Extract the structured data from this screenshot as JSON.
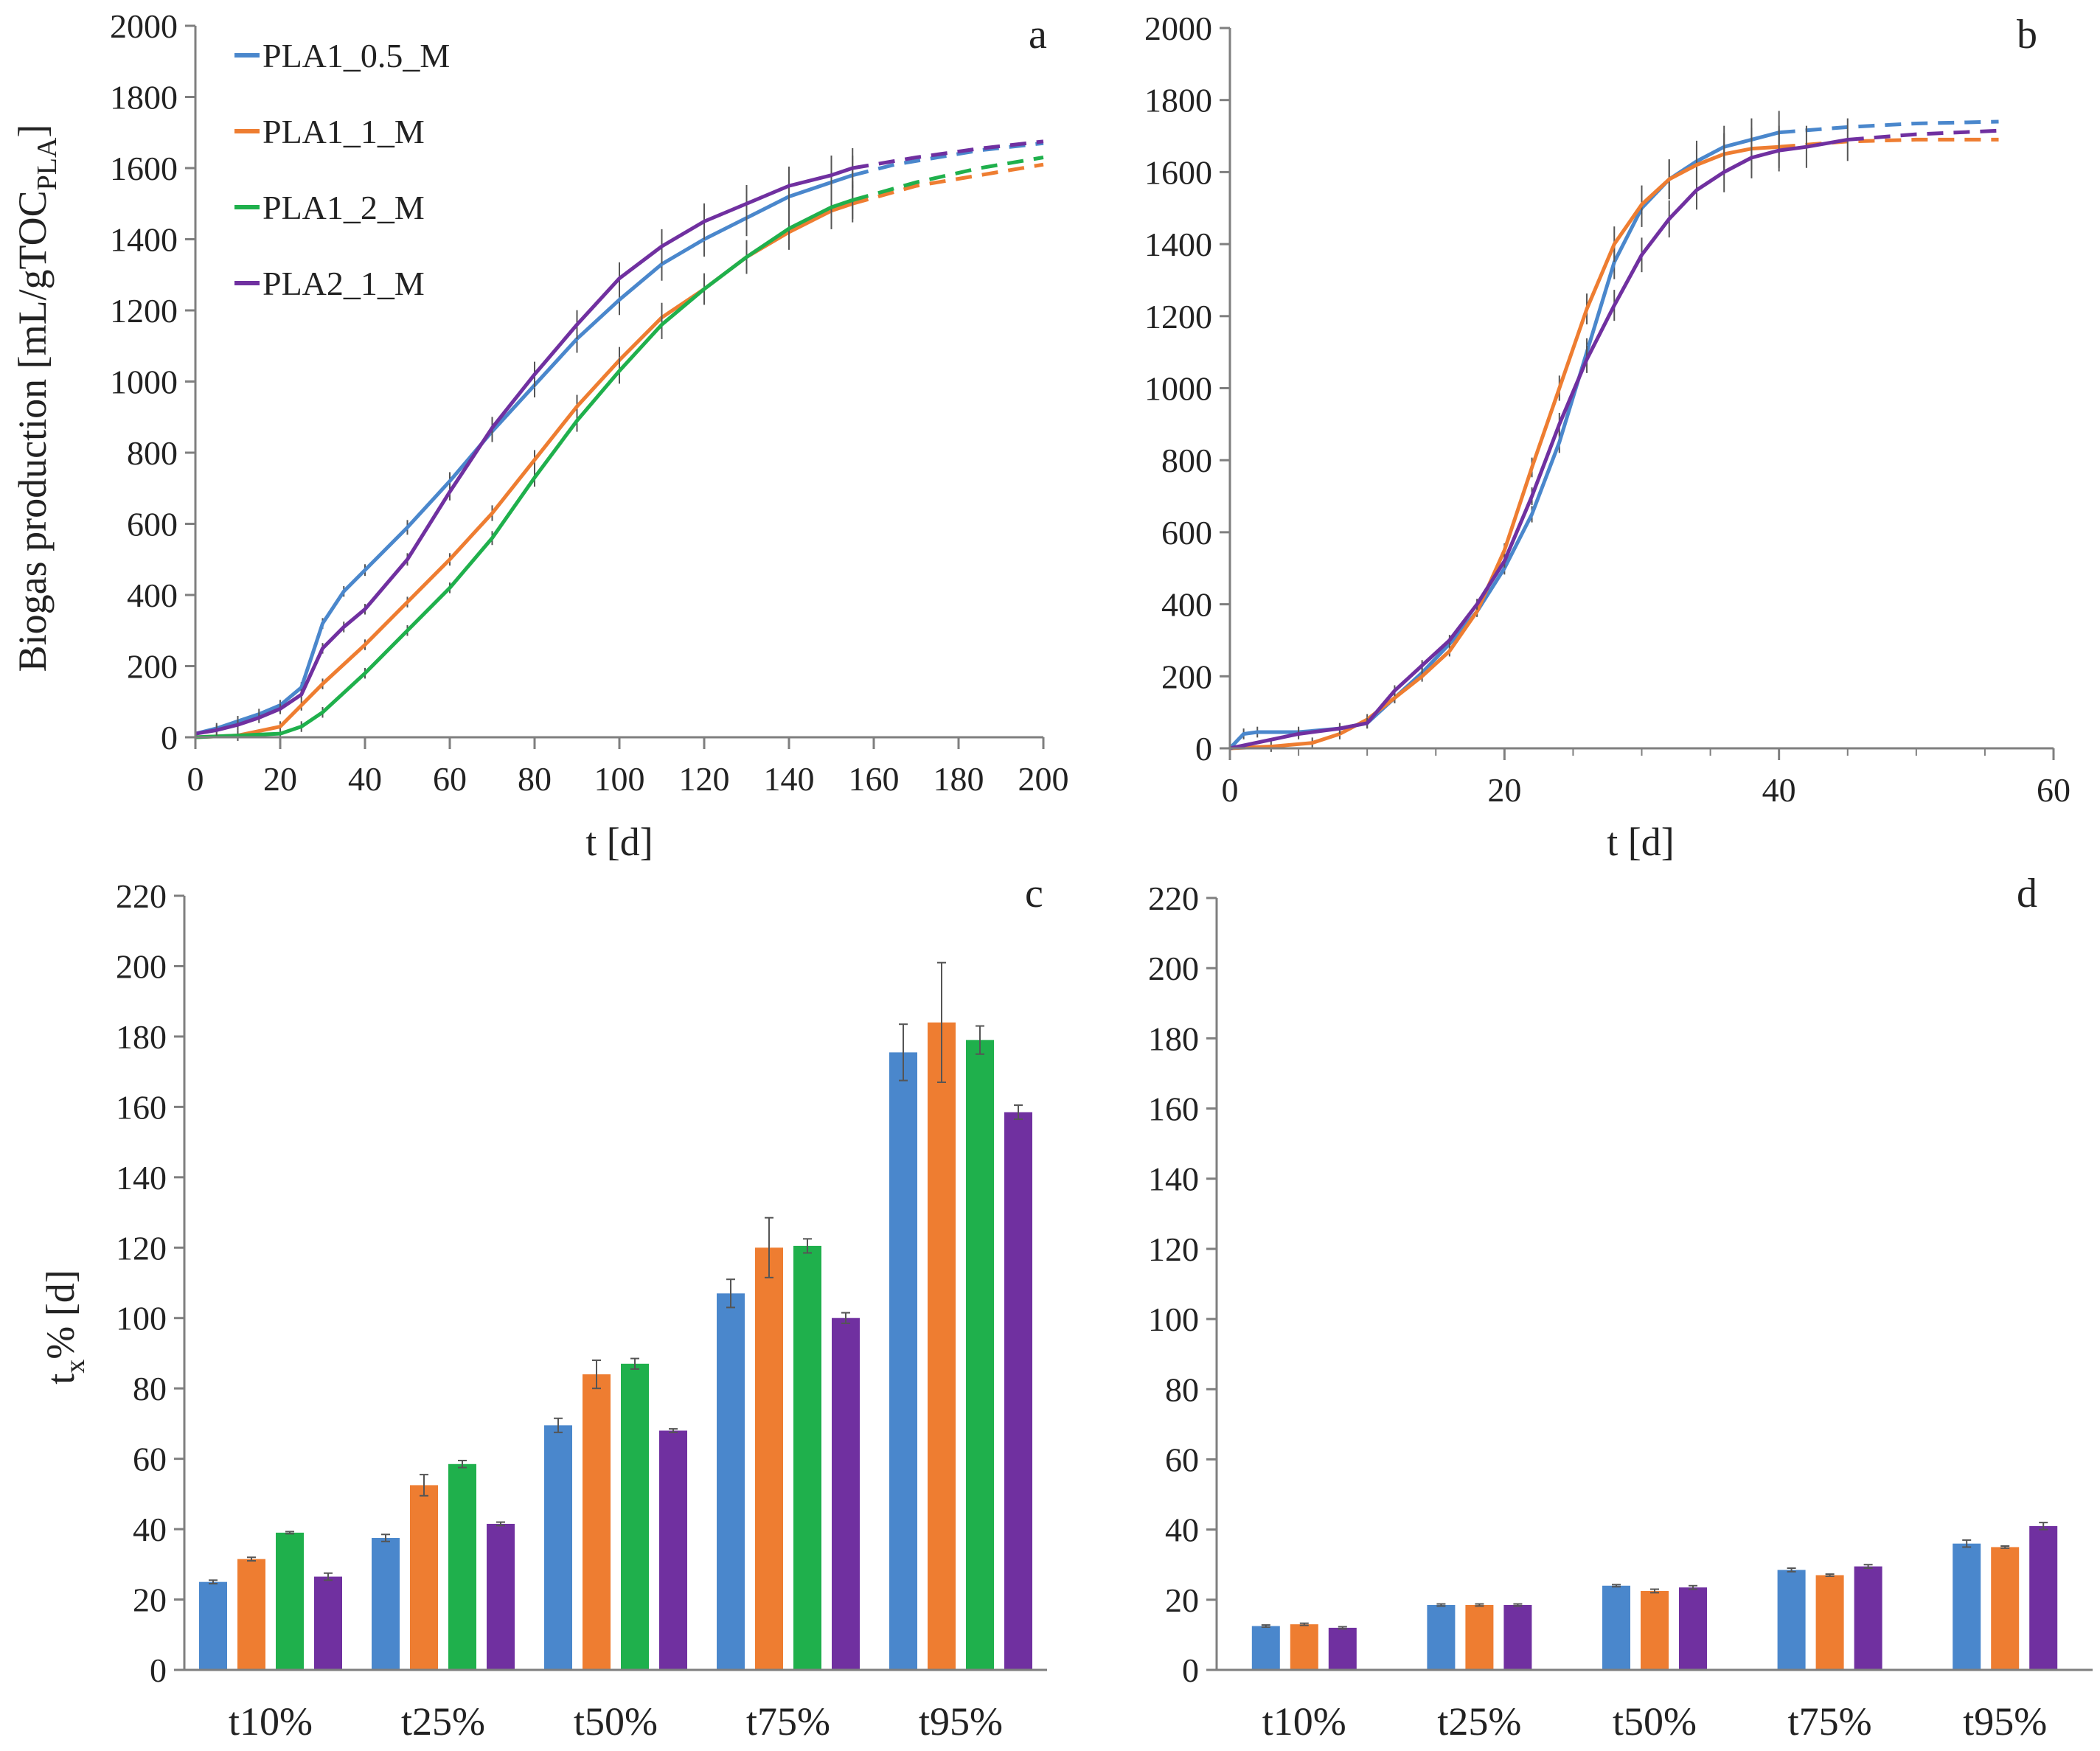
{
  "colors": {
    "PLA1_0.5_M": "#4a87cc",
    "PLA1_1_M": "#ee7d31",
    "PLA1_2_M": "#1fb04c",
    "PLA2_1_M": "#7030a0",
    "axis": "#7f7f7f",
    "error": "#555555"
  },
  "legend": [
    "PLA1_0.5_M",
    "PLA1_1_M",
    "PLA1_2_M",
    "PLA2_1_M"
  ],
  "chart_data": [
    {
      "panel": "a",
      "type": "line",
      "xlabel": "t [d]",
      "ylabel_main": "Biogas production [mL/gTOC",
      "ylabel_sub": "PLA",
      "ylabel_end": "]",
      "xlim": [
        0,
        200
      ],
      "ylim": [
        0,
        2000
      ],
      "xticks": [
        0,
        20,
        40,
        60,
        80,
        100,
        120,
        140,
        160,
        180,
        200
      ],
      "yticks": [
        0,
        200,
        400,
        600,
        800,
        1000,
        1200,
        1400,
        1600,
        1800,
        2000
      ],
      "legend_position": "top-left",
      "series": [
        {
          "name": "PLA1_0.5_M",
          "x": [
            0,
            5,
            10,
            15,
            20,
            25,
            30,
            35,
            40,
            50,
            60,
            70,
            80,
            90,
            100,
            110,
            120,
            130,
            140,
            150,
            155
          ],
          "y": [
            10,
            25,
            45,
            65,
            90,
            140,
            320,
            410,
            470,
            590,
            720,
            860,
            990,
            1120,
            1230,
            1330,
            1400,
            1460,
            1520,
            1560,
            1580
          ],
          "fit_x": [
            155,
            165,
            175,
            185,
            200
          ],
          "fit_y": [
            1580,
            1610,
            1630,
            1650,
            1670
          ]
        },
        {
          "name": "PLA1_1_M",
          "x": [
            0,
            10,
            20,
            25,
            30,
            40,
            50,
            60,
            70,
            80,
            90,
            100,
            110,
            120,
            130,
            140,
            150,
            155
          ],
          "y": [
            0,
            5,
            30,
            90,
            150,
            260,
            380,
            500,
            630,
            780,
            930,
            1060,
            1180,
            1260,
            1350,
            1420,
            1480,
            1500
          ],
          "fit_x": [
            155,
            170,
            185,
            200
          ],
          "fit_y": [
            1500,
            1550,
            1580,
            1610
          ]
        },
        {
          "name": "PLA1_2_M",
          "x": [
            0,
            10,
            20,
            25,
            30,
            40,
            50,
            60,
            70,
            80,
            90,
            100,
            110,
            120,
            130,
            140,
            150,
            155
          ],
          "y": [
            0,
            5,
            10,
            30,
            70,
            180,
            300,
            420,
            560,
            730,
            890,
            1030,
            1160,
            1260,
            1350,
            1430,
            1490,
            1510
          ],
          "fit_x": [
            155,
            170,
            185,
            200
          ],
          "fit_y": [
            1510,
            1560,
            1600,
            1630
          ]
        },
        {
          "name": "PLA2_1_M",
          "x": [
            0,
            5,
            10,
            15,
            20,
            25,
            30,
            35,
            40,
            50,
            60,
            70,
            80,
            90,
            100,
            110,
            120,
            130,
            140,
            150,
            155
          ],
          "y": [
            10,
            20,
            35,
            55,
            80,
            120,
            250,
            310,
            360,
            500,
            690,
            870,
            1020,
            1160,
            1290,
            1380,
            1450,
            1500,
            1550,
            1580,
            1600
          ],
          "fit_x": [
            155,
            170,
            185,
            200
          ],
          "fit_y": [
            1600,
            1630,
            1655,
            1675
          ]
        }
      ]
    },
    {
      "panel": "b",
      "type": "line",
      "xlabel": "t [d]",
      "xlim": [
        0,
        60
      ],
      "ylim": [
        0,
        2000
      ],
      "xticks": [
        0,
        20,
        40,
        60
      ],
      "yticks": [
        0,
        200,
        400,
        600,
        800,
        1000,
        1200,
        1400,
        1600,
        1800,
        2000
      ],
      "series": [
        {
          "name": "PLA1_0.5_M",
          "x": [
            0,
            1,
            2,
            5,
            8,
            10,
            12,
            14,
            16,
            18,
            20,
            22,
            24,
            26,
            28,
            30,
            32,
            34,
            36,
            38,
            40
          ],
          "y": [
            0,
            40,
            45,
            45,
            55,
            70,
            140,
            210,
            290,
            380,
            500,
            650,
            850,
            1100,
            1350,
            1500,
            1580,
            1630,
            1670,
            1690,
            1710
          ],
          "fit_x": [
            40,
            45,
            50,
            56
          ],
          "fit_y": [
            1710,
            1725,
            1735,
            1740
          ]
        },
        {
          "name": "PLA1_1_M",
          "x": [
            0,
            3,
            6,
            8,
            10,
            12,
            14,
            16,
            18,
            20,
            22,
            24,
            26,
            28,
            30,
            32,
            34,
            36,
            38,
            40
          ],
          "y": [
            0,
            5,
            15,
            40,
            80,
            140,
            200,
            270,
            380,
            550,
            780,
            1000,
            1220,
            1400,
            1510,
            1580,
            1620,
            1650,
            1665,
            1670
          ],
          "fit_x": [
            40,
            45,
            50,
            56
          ],
          "fit_y": [
            1670,
            1685,
            1690,
            1690
          ]
        },
        {
          "name": "PLA2_1_M",
          "x": [
            0,
            5,
            8,
            10,
            12,
            14,
            16,
            18,
            20,
            22,
            24,
            26,
            28,
            30,
            32,
            34,
            36,
            38,
            40,
            42,
            45
          ],
          "y": [
            0,
            40,
            55,
            70,
            160,
            230,
            300,
            400,
            520,
            700,
            900,
            1080,
            1230,
            1370,
            1470,
            1550,
            1600,
            1640,
            1660,
            1670,
            1690
          ],
          "fit_x": [
            45,
            50,
            56
          ],
          "fit_y": [
            1690,
            1705,
            1715
          ]
        }
      ]
    },
    {
      "panel": "c",
      "type": "bar",
      "ylabel_main": "t",
      "ylabel_sub": "x",
      "ylabel_end": "% [d]",
      "categories": [
        "t10%",
        "t25%",
        "t50%",
        "t75%",
        "t95%"
      ],
      "ylim": [
        0,
        220
      ],
      "yticks": [
        0,
        20,
        40,
        60,
        80,
        100,
        120,
        140,
        160,
        180,
        200,
        220
      ],
      "series": [
        {
          "name": "PLA1_0.5_M",
          "values": [
            25,
            37.5,
            69.5,
            107,
            175.5
          ],
          "errors": [
            0.5,
            1,
            2,
            4,
            8
          ]
        },
        {
          "name": "PLA1_1_M",
          "values": [
            31.5,
            52.5,
            84,
            120,
            184
          ],
          "errors": [
            0.5,
            3,
            4,
            8.5,
            17
          ]
        },
        {
          "name": "PLA1_2_M",
          "values": [
            39,
            58.5,
            87,
            120.5,
            179
          ],
          "errors": [
            0.3,
            1,
            1.5,
            2,
            4
          ]
        },
        {
          "name": "PLA2_1_M",
          "values": [
            26.5,
            41.5,
            68,
            100,
            158.5
          ],
          "errors": [
            1,
            0.5,
            0.5,
            1.5,
            2
          ]
        }
      ]
    },
    {
      "panel": "d",
      "type": "bar",
      "categories": [
        "t10%",
        "t25%",
        "t50%",
        "t75%",
        "t95%"
      ],
      "ylim": [
        0,
        220
      ],
      "yticks": [
        0,
        20,
        40,
        60,
        80,
        100,
        120,
        140,
        160,
        180,
        200,
        220
      ],
      "series": [
        {
          "name": "PLA1_0.5_M",
          "values": [
            12.5,
            18.5,
            24,
            28.5,
            36
          ],
          "errors": [
            0.3,
            0.3,
            0.3,
            0.5,
            1
          ]
        },
        {
          "name": "PLA1_1_M",
          "values": [
            13,
            18.5,
            22.5,
            27,
            35
          ],
          "errors": [
            0.3,
            0.3,
            0.5,
            0.3,
            0.3
          ]
        },
        {
          "name": "PLA2_1_M",
          "values": [
            12,
            18.5,
            23.5,
            29.5,
            41
          ],
          "errors": [
            0.3,
            0.3,
            0.5,
            0.5,
            1
          ]
        }
      ]
    }
  ]
}
